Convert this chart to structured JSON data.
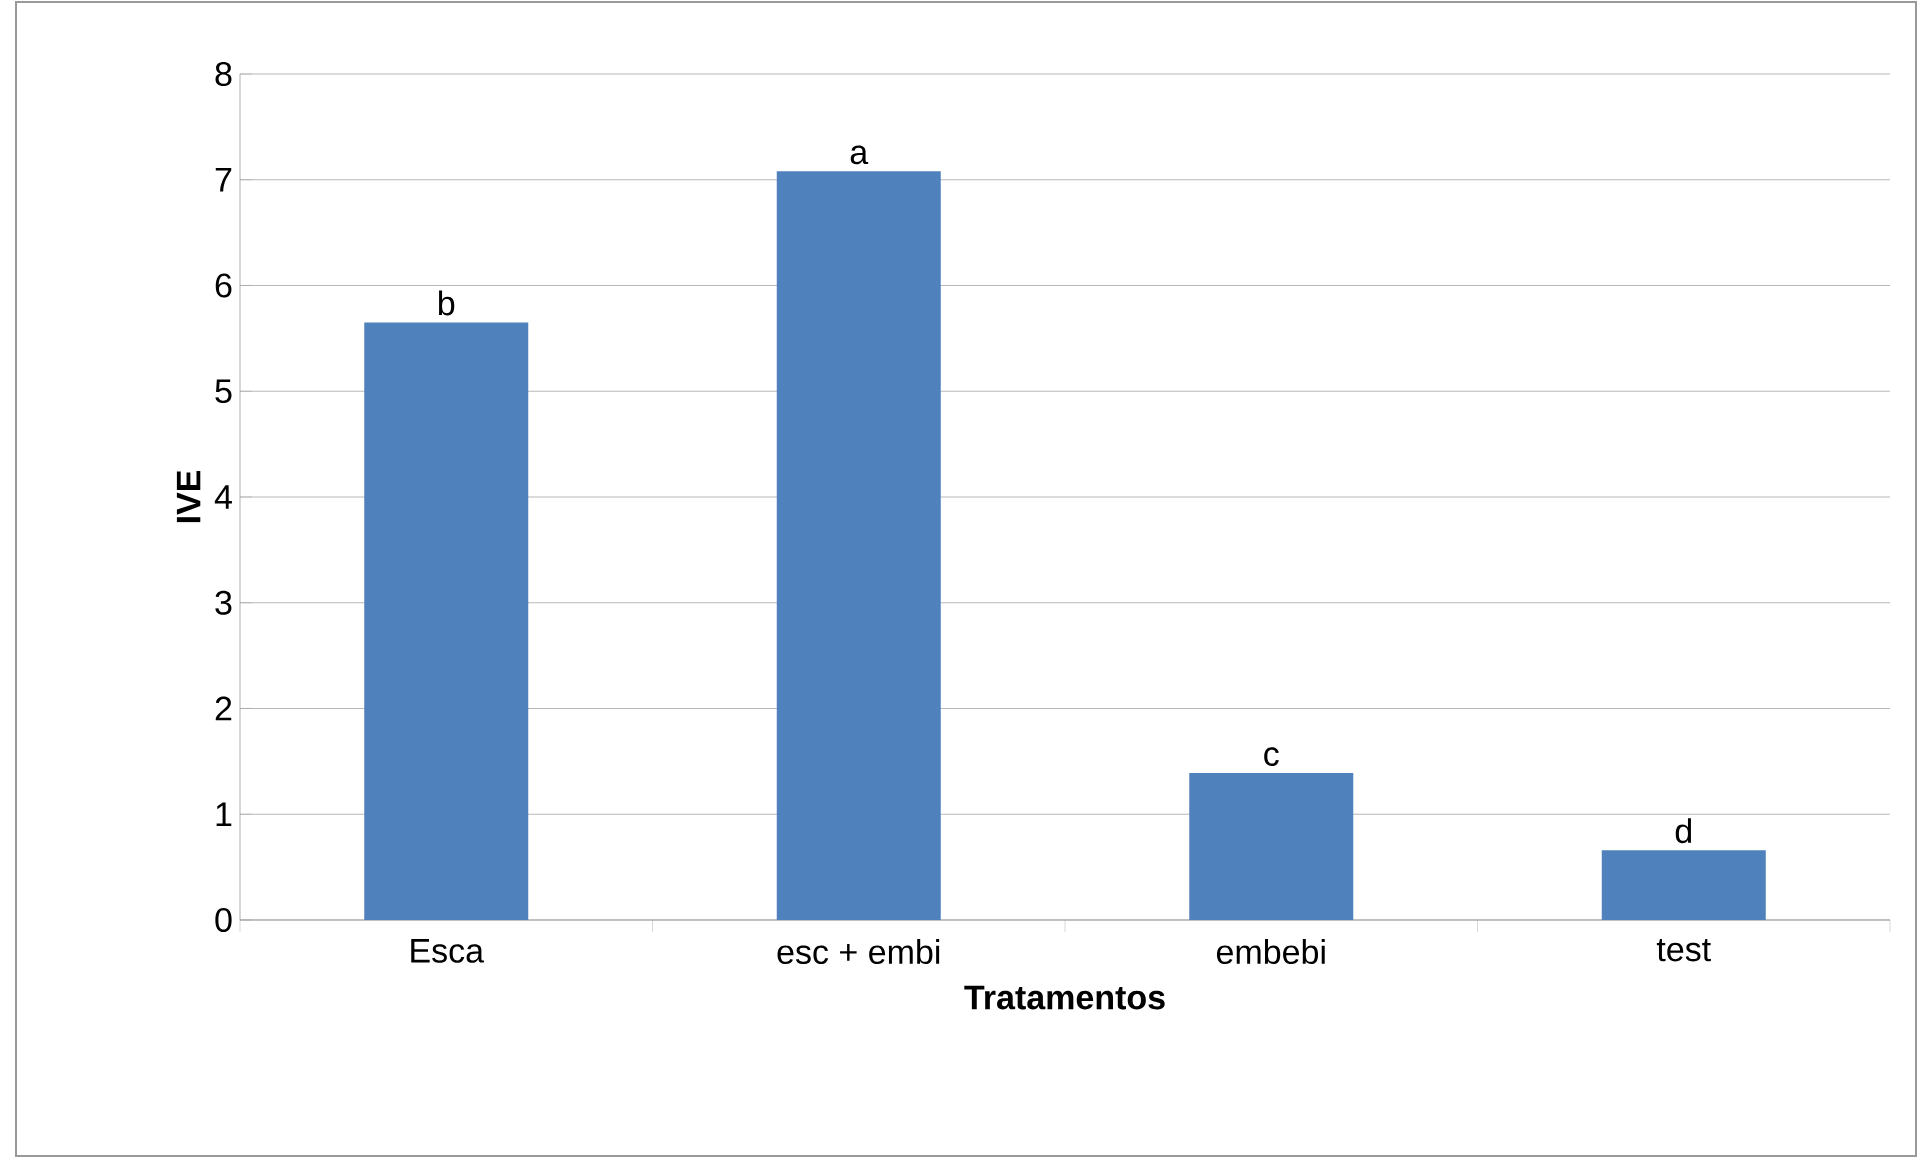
{
  "chart_data": {
    "type": "bar",
    "xlabel": "Tratamentos",
    "ylabel": "IVE",
    "categories": [
      "Esca",
      "esc + embi",
      "embebi",
      "test"
    ],
    "values": [
      5.65,
      7.08,
      1.39,
      0.66
    ],
    "color": "#4f81bd",
    "ylim": [
      0,
      8
    ],
    "yticks": [
      0,
      1,
      2,
      3,
      4,
      5,
      6,
      7,
      8
    ],
    "grid": "y",
    "annotations": [
      {
        "text": "b",
        "x": "Esca",
        "y": 5.65
      },
      {
        "text": "a",
        "x": "esc + embi",
        "y": 7.08
      },
      {
        "text": "c",
        "x": "embebi",
        "y": 1.39
      },
      {
        "text": "d",
        "x": "test",
        "y": 0.66
      }
    ]
  }
}
